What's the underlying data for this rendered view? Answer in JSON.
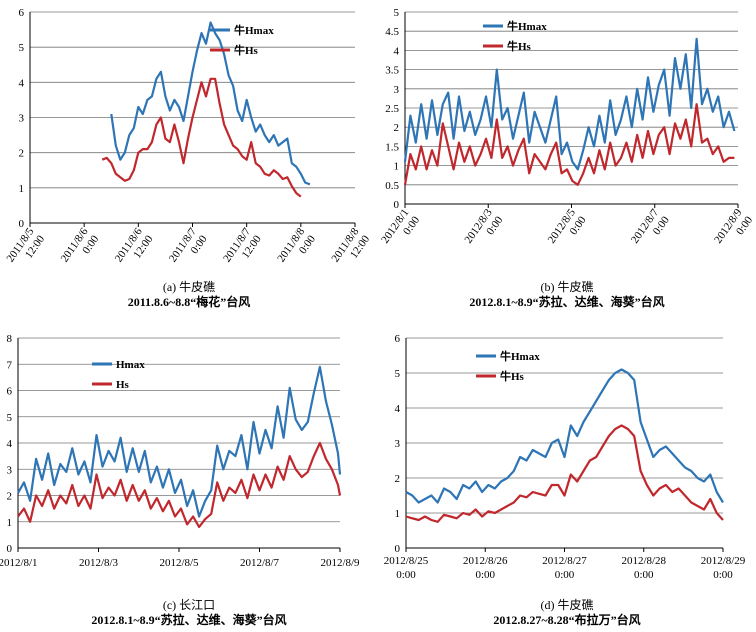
{
  "colors": {
    "hmax": "#2e75b6",
    "hs": "#c0282d"
  },
  "chart_data": [
    {
      "id": "a",
      "type": "line",
      "caption": "(a) 牛皮礁",
      "subcaption": "2011.8.6~8.8“梅花”台风",
      "x_ticks": [
        "2011/8/5 12:00",
        "2011/8/6 0:00",
        "2011/8/6 12:00",
        "2011/8/7 0:00",
        "2011/8/7 12:00",
        "2011/8/8 0:00",
        "2011/8/8 12:00"
      ],
      "ylim": [
        0,
        6
      ],
      "y_ticks": [
        0,
        1,
        2,
        3,
        4,
        5,
        6
      ],
      "xlim": [
        0,
        72
      ],
      "legend": "top-right",
      "series": [
        {
          "name": "牛Hmax",
          "color_key": "hmax",
          "x": [
            18,
            19,
            20,
            21,
            22,
            23,
            24,
            25,
            26,
            27,
            28,
            29,
            30,
            31,
            32,
            33,
            34,
            35,
            36,
            37,
            38,
            39,
            40,
            41,
            42,
            43,
            44,
            45,
            46,
            47,
            48,
            49,
            50,
            51,
            52,
            53,
            54,
            55,
            56,
            57,
            58,
            59,
            60,
            61,
            62
          ],
          "y": [
            3.1,
            2.2,
            1.8,
            2.0,
            2.5,
            2.7,
            3.3,
            3.1,
            3.5,
            3.6,
            4.1,
            4.3,
            3.6,
            3.2,
            3.5,
            3.3,
            2.9,
            3.6,
            4.3,
            4.9,
            5.4,
            5.1,
            5.7,
            5.4,
            5.2,
            4.8,
            4.2,
            3.9,
            3.2,
            2.9,
            3.5,
            3.0,
            2.6,
            2.8,
            2.5,
            2.3,
            2.5,
            2.2,
            2.3,
            2.4,
            1.7,
            1.6,
            1.4,
            1.15,
            1.1
          ]
        },
        {
          "name": "牛Hs",
          "color_key": "hs",
          "x": [
            16,
            17,
            18,
            19,
            20,
            21,
            22,
            23,
            24,
            25,
            26,
            27,
            28,
            29,
            30,
            31,
            32,
            33,
            34,
            35,
            36,
            37,
            38,
            39,
            40,
            41,
            42,
            43,
            44,
            45,
            46,
            47,
            48,
            49,
            50,
            51,
            52,
            53,
            54,
            55,
            56,
            57,
            58,
            59,
            60
          ],
          "y": [
            1.8,
            1.85,
            1.7,
            1.4,
            1.3,
            1.2,
            1.25,
            1.5,
            2.0,
            2.1,
            2.1,
            2.3,
            2.8,
            3.0,
            2.4,
            2.3,
            2.8,
            2.3,
            1.7,
            2.4,
            3.0,
            3.5,
            4.0,
            3.6,
            4.1,
            4.1,
            3.4,
            2.8,
            2.5,
            2.2,
            2.1,
            1.9,
            1.8,
            2.3,
            1.7,
            1.6,
            1.4,
            1.35,
            1.5,
            1.4,
            1.25,
            1.3,
            1.05,
            0.85,
            0.75
          ]
        }
      ]
    },
    {
      "id": "b",
      "type": "line",
      "caption": "(b) 牛皮礁",
      "subcaption": "2012.8.1~8.9“苏拉、达维、海葵”台风",
      "x_ticks": [
        "2012/8/1 0:00",
        "2012/8/3 0:00",
        "2012/8/5 0:00",
        "2012/8/7 0:00",
        "2012/8/9 0:00"
      ],
      "ylim": [
        0,
        5
      ],
      "y_ticks": [
        0,
        0.5,
        1,
        1.5,
        2,
        2.5,
        3,
        3.5,
        4,
        4.5,
        5
      ],
      "xlim": [
        0,
        9.25
      ],
      "legend": "top-left",
      "series": [
        {
          "name": "牛Hmax",
          "color_key": "hmax",
          "x": [
            0,
            0.15,
            0.3,
            0.45,
            0.6,
            0.75,
            0.9,
            1.05,
            1.2,
            1.35,
            1.5,
            1.65,
            1.8,
            1.95,
            2.1,
            2.25,
            2.4,
            2.55,
            2.7,
            2.85,
            3.0,
            3.15,
            3.3,
            3.45,
            3.6,
            3.75,
            3.9,
            4.05,
            4.2,
            4.35,
            4.5,
            4.65,
            4.8,
            4.95,
            5.1,
            5.25,
            5.4,
            5.55,
            5.7,
            5.85,
            6.0,
            6.15,
            6.3,
            6.45,
            6.6,
            6.75,
            6.9,
            7.05,
            7.2,
            7.35,
            7.5,
            7.65,
            7.8,
            7.95,
            8.1,
            8.25,
            8.4,
            8.55,
            8.7,
            8.85,
            9.0,
            9.15
          ],
          "y": [
            1.1,
            2.3,
            1.6,
            2.6,
            1.7,
            2.7,
            1.8,
            2.6,
            2.9,
            1.7,
            2.8,
            1.9,
            2.4,
            1.8,
            2.2,
            2.8,
            2.0,
            3.5,
            2.2,
            2.5,
            1.7,
            2.3,
            2.9,
            1.6,
            2.4,
            2.0,
            1.6,
            2.2,
            2.8,
            1.3,
            1.6,
            1.1,
            0.9,
            1.4,
            2.0,
            1.5,
            2.3,
            1.6,
            2.7,
            1.8,
            2.2,
            2.8,
            2.0,
            3.0,
            2.2,
            3.3,
            2.4,
            3.1,
            3.5,
            2.3,
            3.8,
            3.0,
            3.9,
            2.5,
            4.3,
            2.6,
            3.0,
            2.4,
            2.8,
            2.0,
            2.4,
            1.9
          ]
        },
        {
          "name": "牛Hs",
          "color_key": "hs",
          "x": [
            0,
            0.15,
            0.3,
            0.45,
            0.6,
            0.75,
            0.9,
            1.05,
            1.2,
            1.35,
            1.5,
            1.65,
            1.8,
            1.95,
            2.1,
            2.25,
            2.4,
            2.55,
            2.7,
            2.85,
            3.0,
            3.15,
            3.3,
            3.45,
            3.6,
            3.75,
            3.9,
            4.05,
            4.2,
            4.35,
            4.5,
            4.65,
            4.8,
            4.95,
            5.1,
            5.25,
            5.4,
            5.55,
            5.7,
            5.85,
            6.0,
            6.15,
            6.3,
            6.45,
            6.6,
            6.75,
            6.9,
            7.05,
            7.2,
            7.35,
            7.5,
            7.65,
            7.8,
            7.95,
            8.1,
            8.25,
            8.4,
            8.55,
            8.7,
            8.85,
            9.0,
            9.15
          ],
          "y": [
            0.5,
            1.3,
            0.9,
            1.5,
            0.9,
            1.4,
            1.0,
            2.1,
            1.5,
            0.9,
            1.6,
            1.1,
            1.5,
            1.0,
            1.3,
            1.7,
            1.2,
            2.2,
            1.2,
            1.5,
            1.0,
            1.4,
            1.7,
            0.8,
            1.3,
            1.1,
            0.9,
            1.3,
            1.6,
            0.8,
            0.9,
            0.6,
            0.5,
            0.8,
            1.2,
            0.8,
            1.4,
            0.9,
            1.6,
            1.0,
            1.2,
            1.6,
            1.1,
            1.8,
            1.2,
            1.9,
            1.3,
            1.8,
            2.0,
            1.3,
            2.1,
            1.7,
            2.2,
            1.5,
            2.6,
            1.6,
            1.7,
            1.3,
            1.5,
            1.1,
            1.2,
            1.2
          ]
        }
      ]
    },
    {
      "id": "c",
      "type": "line",
      "caption": "(c) 长江口",
      "subcaption": "2012.8.1~8.9“苏拉、达维、海葵”台风",
      "x_ticks": [
        "2012/8/1",
        "2012/8/3",
        "2012/8/5",
        "2012/8/7",
        "2012/8/9"
      ],
      "ylim": [
        0,
        8
      ],
      "y_ticks": [
        0,
        1,
        2,
        3,
        4,
        5,
        6,
        7,
        8
      ],
      "xlim": [
        0,
        8
      ],
      "legend": "top-left",
      "series": [
        {
          "name": "Hmax",
          "color_key": "hmax",
          "x": [
            0,
            0.15,
            0.3,
            0.45,
            0.6,
            0.75,
            0.9,
            1.05,
            1.2,
            1.35,
            1.5,
            1.65,
            1.8,
            1.95,
            2.1,
            2.25,
            2.4,
            2.55,
            2.7,
            2.85,
            3.0,
            3.15,
            3.3,
            3.45,
            3.6,
            3.75,
            3.9,
            4.05,
            4.2,
            4.35,
            4.5,
            4.65,
            4.8,
            4.95,
            5.1,
            5.25,
            5.4,
            5.55,
            5.7,
            5.85,
            6.0,
            6.15,
            6.3,
            6.45,
            6.6,
            6.75,
            6.9,
            7.05,
            7.2,
            7.35,
            7.5,
            7.65,
            7.8,
            7.95,
            8.0
          ],
          "y": [
            2.1,
            2.5,
            1.8,
            3.4,
            2.6,
            3.6,
            2.4,
            3.2,
            2.9,
            3.8,
            2.8,
            3.3,
            2.5,
            4.3,
            3.1,
            3.7,
            3.3,
            4.2,
            2.9,
            3.8,
            2.9,
            3.7,
            2.5,
            3.1,
            2.3,
            3.0,
            2.1,
            2.6,
            1.6,
            2.2,
            1.2,
            1.8,
            2.2,
            3.9,
            3.0,
            3.7,
            3.5,
            4.3,
            3.0,
            4.8,
            3.6,
            4.5,
            3.8,
            5.4,
            4.2,
            6.1,
            4.9,
            4.5,
            4.8,
            5.9,
            6.9,
            5.6,
            4.7,
            3.6,
            2.8
          ]
        },
        {
          "name": "Hs",
          "color_key": "hs",
          "x": [
            0,
            0.15,
            0.3,
            0.45,
            0.6,
            0.75,
            0.9,
            1.05,
            1.2,
            1.35,
            1.5,
            1.65,
            1.8,
            1.95,
            2.1,
            2.25,
            2.4,
            2.55,
            2.7,
            2.85,
            3.0,
            3.15,
            3.3,
            3.45,
            3.6,
            3.75,
            3.9,
            4.05,
            4.2,
            4.35,
            4.5,
            4.65,
            4.8,
            4.95,
            5.1,
            5.25,
            5.4,
            5.55,
            5.7,
            5.85,
            6.0,
            6.15,
            6.3,
            6.45,
            6.6,
            6.75,
            6.9,
            7.05,
            7.2,
            7.35,
            7.5,
            7.65,
            7.8,
            7.95,
            8.0
          ],
          "y": [
            1.2,
            1.5,
            1.0,
            2.0,
            1.6,
            2.2,
            1.5,
            2.0,
            1.7,
            2.4,
            1.6,
            2.0,
            1.5,
            2.8,
            1.9,
            2.3,
            2.0,
            2.6,
            1.8,
            2.4,
            1.8,
            2.2,
            1.5,
            1.9,
            1.4,
            1.8,
            1.2,
            1.5,
            0.9,
            1.2,
            0.8,
            1.1,
            1.3,
            2.5,
            1.8,
            2.3,
            2.1,
            2.6,
            1.9,
            2.8,
            2.2,
            2.8,
            2.3,
            3.1,
            2.6,
            3.5,
            3.0,
            2.7,
            2.9,
            3.5,
            4.0,
            3.4,
            3.0,
            2.4,
            2.0
          ]
        }
      ]
    },
    {
      "id": "d",
      "type": "line",
      "caption": "(d) 牛皮礁",
      "subcaption": "2012.8.27~8.28“布拉万”台风",
      "x_ticks": [
        "2012/8/25 0:00",
        "2012/8/26 0:00",
        "2012/8/27 0:00",
        "2012/8/28 0:00",
        "2012/8/29 0:00"
      ],
      "ylim": [
        0,
        6
      ],
      "y_ticks": [
        0,
        1,
        2,
        3,
        4,
        5,
        6
      ],
      "xlim": [
        0,
        4
      ],
      "legend": "top-left",
      "series": [
        {
          "name": "牛Hmax",
          "color_key": "hmax",
          "x": [
            0,
            0.08,
            0.16,
            0.24,
            0.32,
            0.4,
            0.48,
            0.56,
            0.64,
            0.72,
            0.8,
            0.88,
            0.96,
            1.04,
            1.12,
            1.2,
            1.28,
            1.36,
            1.44,
            1.52,
            1.6,
            1.68,
            1.76,
            1.84,
            1.92,
            2.0,
            2.08,
            2.16,
            2.24,
            2.32,
            2.4,
            2.48,
            2.56,
            2.64,
            2.72,
            2.8,
            2.88,
            2.96,
            3.04,
            3.12,
            3.2,
            3.28,
            3.36,
            3.44,
            3.52,
            3.6,
            3.68,
            3.76,
            3.84,
            3.92,
            4.0
          ],
          "y": [
            1.6,
            1.5,
            1.3,
            1.4,
            1.5,
            1.3,
            1.7,
            1.6,
            1.4,
            1.8,
            1.7,
            1.9,
            1.6,
            1.8,
            1.7,
            1.9,
            2.0,
            2.2,
            2.6,
            2.5,
            2.8,
            2.7,
            2.6,
            3.0,
            3.1,
            2.6,
            3.5,
            3.2,
            3.6,
            3.9,
            4.2,
            4.5,
            4.8,
            5.0,
            5.1,
            5.0,
            4.8,
            3.6,
            3.1,
            2.6,
            2.8,
            2.9,
            2.7,
            2.5,
            2.3,
            2.2,
            2.0,
            1.9,
            2.1,
            1.6,
            1.3
          ]
        },
        {
          "name": "牛Hs",
          "color_key": "hs",
          "x": [
            0,
            0.08,
            0.16,
            0.24,
            0.32,
            0.4,
            0.48,
            0.56,
            0.64,
            0.72,
            0.8,
            0.88,
            0.96,
            1.04,
            1.12,
            1.2,
            1.28,
            1.36,
            1.44,
            1.52,
            1.6,
            1.68,
            1.76,
            1.84,
            1.92,
            2.0,
            2.08,
            2.16,
            2.24,
            2.32,
            2.4,
            2.48,
            2.56,
            2.64,
            2.72,
            2.8,
            2.88,
            2.96,
            3.04,
            3.12,
            3.2,
            3.28,
            3.36,
            3.44,
            3.52,
            3.6,
            3.68,
            3.76,
            3.84,
            3.92,
            4.0
          ],
          "y": [
            0.9,
            0.85,
            0.8,
            0.9,
            0.8,
            0.75,
            0.95,
            0.9,
            0.85,
            1.0,
            0.95,
            1.1,
            0.9,
            1.05,
            1.0,
            1.1,
            1.2,
            1.3,
            1.5,
            1.45,
            1.6,
            1.55,
            1.5,
            1.8,
            1.8,
            1.5,
            2.1,
            1.9,
            2.2,
            2.5,
            2.6,
            2.9,
            3.2,
            3.4,
            3.5,
            3.4,
            3.2,
            2.2,
            1.8,
            1.5,
            1.7,
            1.8,
            1.6,
            1.7,
            1.5,
            1.3,
            1.2,
            1.1,
            1.4,
            1.0,
            0.8
          ]
        }
      ]
    }
  ]
}
